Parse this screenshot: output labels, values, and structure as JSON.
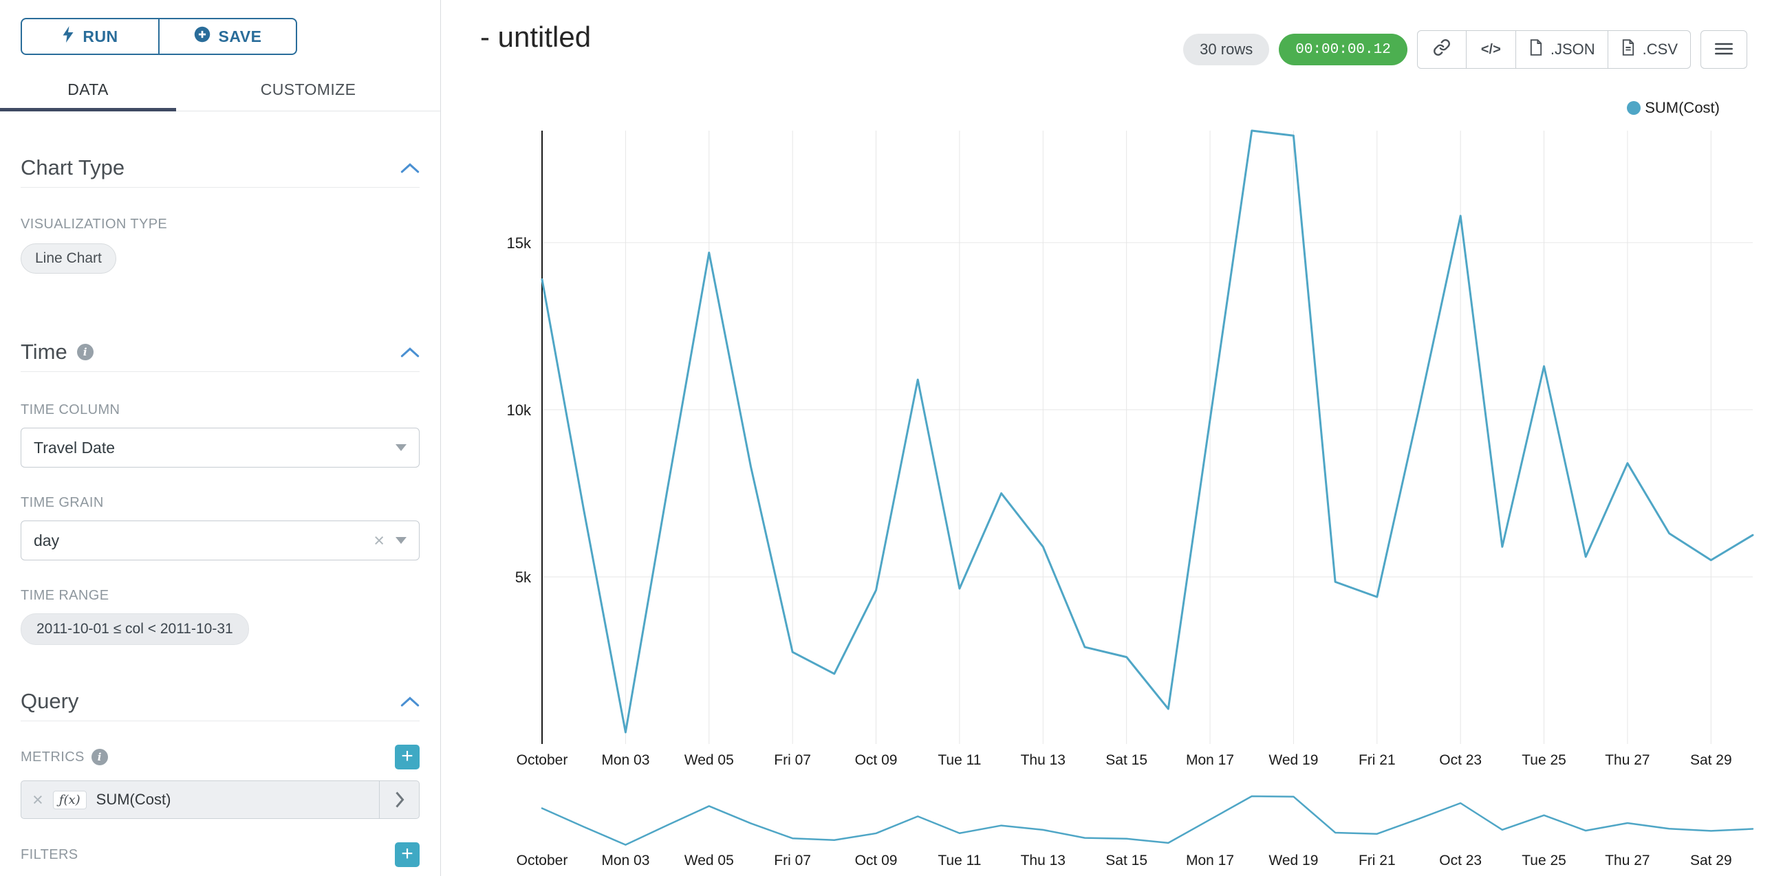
{
  "colors": {
    "primary_blue": "#2a6d9a",
    "chevron_blue": "#4a90d2",
    "add_teal": "#3fa9c4",
    "timer_green": "#4caf50",
    "line_color": "#4fa6c6",
    "tab_underline": "#3f4a63"
  },
  "sidebar": {
    "run_label": "RUN",
    "save_label": "SAVE",
    "tabs": [
      {
        "label": "DATA",
        "active": true
      },
      {
        "label": "CUSTOMIZE",
        "active": false
      }
    ],
    "chart_type": {
      "title": "Chart Type",
      "viz_label": "VISUALIZATION TYPE",
      "viz_value": "Line Chart"
    },
    "time": {
      "title": "Time",
      "column_label": "TIME COLUMN",
      "column_value": "Travel Date",
      "grain_label": "TIME GRAIN",
      "grain_value": "day",
      "range_label": "TIME RANGE",
      "range_value": "2011-10-01 ≤ col < 2011-10-31"
    },
    "query": {
      "title": "Query",
      "metrics_label": "METRICS",
      "metric_fx": "ƒ(x)",
      "metric_name": "SUM(Cost)",
      "filters_label": "FILTERS"
    }
  },
  "header": {
    "title": "- untitled",
    "rows_badge": "30 rows",
    "timer": "00:00:00.12",
    "code_icon_label": "</>",
    "json_label": ".JSON",
    "csv_label": ".CSV"
  },
  "chart_data": {
    "type": "line",
    "title": "",
    "legend": {
      "label": "SUM(Cost)",
      "position": "top-right"
    },
    "xlabel": "",
    "ylabel": "",
    "grid": true,
    "ylim": [
      0,
      18350
    ],
    "x": [
      "2011-10-01",
      "2011-10-02",
      "2011-10-03",
      "2011-10-04",
      "2011-10-05",
      "2011-10-06",
      "2011-10-07",
      "2011-10-08",
      "2011-10-09",
      "2011-10-10",
      "2011-10-11",
      "2011-10-12",
      "2011-10-13",
      "2011-10-14",
      "2011-10-15",
      "2011-10-16",
      "2011-10-17",
      "2011-10-18",
      "2011-10-19",
      "2011-10-20",
      "2011-10-21",
      "2011-10-22",
      "2011-10-23",
      "2011-10-24",
      "2011-10-25",
      "2011-10-26",
      "2011-10-27",
      "2011-10-28",
      "2011-10-29",
      "2011-10-30"
    ],
    "series": [
      {
        "name": "SUM(Cost)",
        "values": [
          13900,
          7000,
          350,
          7600,
          14700,
          8300,
          2750,
          2100,
          4600,
          10900,
          4650,
          7500,
          5900,
          2900,
          2600,
          1050,
          9700,
          18350,
          18200,
          4850,
          4400,
          10000,
          15800,
          5900,
          11300,
          5600,
          8400,
          6300,
          5500,
          6250
        ]
      }
    ],
    "x_ticks": [
      {
        "i": 0,
        "label": "October"
      },
      {
        "i": 2,
        "label": "Mon 03"
      },
      {
        "i": 4,
        "label": "Wed 05"
      },
      {
        "i": 6,
        "label": "Fri 07"
      },
      {
        "i": 8,
        "label": "Oct 09"
      },
      {
        "i": 10,
        "label": "Tue 11"
      },
      {
        "i": 12,
        "label": "Thu 13"
      },
      {
        "i": 14,
        "label": "Sat 15"
      },
      {
        "i": 16,
        "label": "Mon 17"
      },
      {
        "i": 18,
        "label": "Wed 19"
      },
      {
        "i": 20,
        "label": "Fri 21"
      },
      {
        "i": 22,
        "label": "Oct 23"
      },
      {
        "i": 24,
        "label": "Tue 25"
      },
      {
        "i": 26,
        "label": "Thu 27"
      },
      {
        "i": 28,
        "label": "Sat 29"
      }
    ],
    "y_ticks": [
      {
        "value": 5000,
        "label": "5k"
      },
      {
        "value": 10000,
        "label": "10k"
      },
      {
        "value": 15000,
        "label": "15k"
      }
    ],
    "has_mini_chart": true
  }
}
